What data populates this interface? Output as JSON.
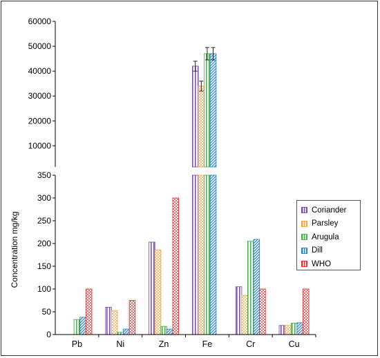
{
  "chart_data": {
    "type": "bar",
    "categories": [
      "Pb",
      "Ni",
      "Zn",
      "Fe",
      "Cr",
      "Cu"
    ],
    "ylabel": "Concentration mg/kg",
    "xlabel": "",
    "upper_axis": {
      "ylim": [
        0,
        60000
      ],
      "ticks": [
        "10000",
        "20000",
        "30000",
        "40000",
        "50000",
        "60000"
      ]
    },
    "lower_axis": {
      "ylim": [
        0,
        350
      ],
      "ticks": [
        "0",
        "50",
        "100",
        "150",
        "200",
        "250",
        "300",
        "350"
      ]
    },
    "series": [
      {
        "name": "Coriander",
        "color": "#7B52AB",
        "values": [
          0,
          60,
          203,
          42000,
          105,
          20
        ]
      },
      {
        "name": "Parsley",
        "color": "#F0A84A",
        "values": [
          0,
          52,
          186,
          34000,
          86,
          20
        ]
      },
      {
        "name": "Arugula",
        "color": "#4CAF50",
        "values": [
          33,
          5,
          18,
          47000,
          205,
          25
        ]
      },
      {
        "name": "Dill",
        "color": "#2E86C1",
        "values": [
          38,
          12,
          12,
          47000,
          209,
          26
        ]
      },
      {
        "name": "WHO",
        "color": "#D63B3B",
        "values": [
          100,
          75,
          300,
          0,
          100,
          100
        ]
      }
    ],
    "error_bars": {
      "Fe": {
        "Coriander": 2000,
        "Parsley": 2000,
        "Arugula": 2500,
        "Dill": 2500
      }
    },
    "legend_position": "right"
  }
}
